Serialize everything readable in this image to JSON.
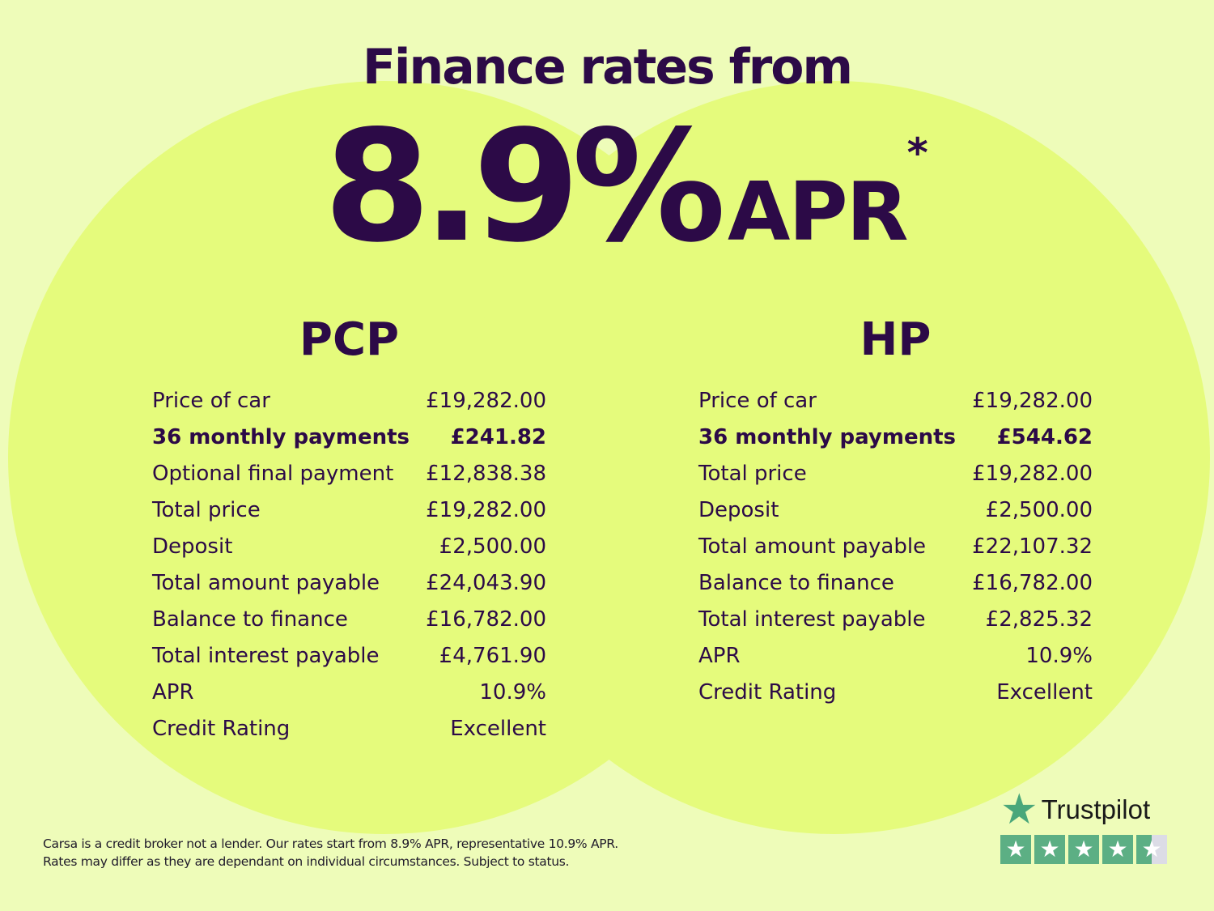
{
  "header": {
    "title": "Finance rates from",
    "rate": "8.9%",
    "rate_suffix": "APR",
    "asterisk": "*"
  },
  "pcp": {
    "heading": "PCP",
    "rows": [
      {
        "label": "Price of car",
        "value": "£19,282.00"
      },
      {
        "label": "36 monthly payments",
        "value": "£241.82"
      },
      {
        "label": "Optional final payment",
        "value": "£12,838.38"
      },
      {
        "label": "Total price",
        "value": "£19,282.00"
      },
      {
        "label": "Deposit",
        "value": "£2,500.00"
      },
      {
        "label": "Total amount payable",
        "value": "£24,043.90"
      },
      {
        "label": "Balance to finance",
        "value": "£16,782.00"
      },
      {
        "label": "Total interest payable",
        "value": "£4,761.90"
      },
      {
        "label": "APR",
        "value": "10.9%"
      },
      {
        "label": "Credit Rating",
        "value": "Excellent"
      }
    ]
  },
  "hp": {
    "heading": "HP",
    "rows": [
      {
        "label": "Price of car",
        "value": "£19,282.00"
      },
      {
        "label": "36 monthly payments",
        "value": "£544.62"
      },
      {
        "label": "Total price",
        "value": "£19,282.00"
      },
      {
        "label": "Deposit",
        "value": "£2,500.00"
      },
      {
        "label": "Total amount payable",
        "value": "£22,107.32"
      },
      {
        "label": "Balance to finance",
        "value": "£16,782.00"
      },
      {
        "label": "Total interest payable",
        "value": "£2,825.32"
      },
      {
        "label": "APR",
        "value": "10.9%"
      },
      {
        "label": "Credit Rating",
        "value": "Excellent"
      }
    ]
  },
  "footer": {
    "line1": "Carsa is a credit broker not a lender. Our rates start from 8.9% APR, representative 10.9% APR.",
    "line2": "Rates may differ as they are dependant on individual circumstances. Subject to status."
  },
  "trustpilot": {
    "name": "Trustpilot",
    "rating_stars": 4.5,
    "icon": "star-icon"
  },
  "colors": {
    "background": "#eefcb9",
    "circle": "#e5fb7c",
    "text": "#2c0a47",
    "trustpilot_green": "#5caf84"
  }
}
